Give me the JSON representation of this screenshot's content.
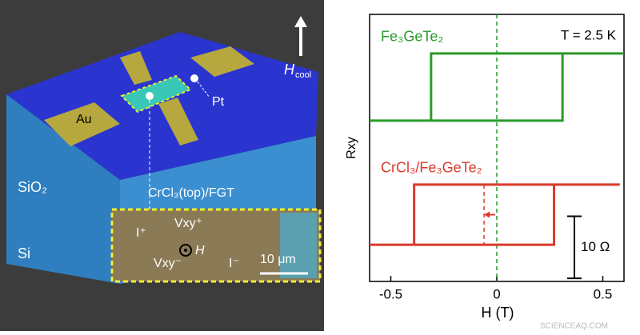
{
  "schematic": {
    "au": "Au",
    "pt": "Pt",
    "sio2": "SiO₂",
    "sample": "CrCl₃(top)/FGT",
    "si": "Si",
    "h_cool": "H",
    "h_cool_sub": "cool",
    "inset": {
      "i_plus": "I⁺",
      "vxy_plus": "Vxy⁺",
      "h": "H",
      "vxy_minus": "Vxy⁻",
      "i_minus": "I⁻",
      "scale": "10 μm"
    }
  },
  "chart_data": {
    "type": "line",
    "xlabel": "H (T)",
    "ylabel": "Rxy",
    "xlim": [
      -0.6,
      0.6
    ],
    "xticks": [
      -0.5,
      0,
      0.5
    ],
    "ylim": [
      0,
      43
    ],
    "series": [
      {
        "name": "Fe₃GeTe₂",
        "color": "#2a9a2a",
        "x": [
          -0.6,
          0.31,
          0.31,
          0.6,
          -0.31,
          -0.31
        ],
        "values": [
          25.9,
          25.9,
          36.7,
          36.7,
          36.7,
          25.9
        ]
      },
      {
        "name": "CrCl₃/Fe₃GeTe₂",
        "color": "#d93a2b",
        "x": [
          -0.6,
          0.27,
          0.27,
          0.58,
          -0.39,
          -0.39
        ],
        "values": [
          5.9,
          5.9,
          15.6,
          15.6,
          15.6,
          5.9
        ]
      }
    ],
    "zero_line": {
      "x": 0,
      "color": "#2a9a2a"
    },
    "shift_marker": {
      "x": -0.06,
      "color": "#d93a2b"
    },
    "annotation": "T = 2.5 K",
    "scale_bar": {
      "from": 0.5,
      "to": 10.5,
      "label": "10 Ω"
    }
  },
  "watermark": "SCIENCEAQ.COM"
}
